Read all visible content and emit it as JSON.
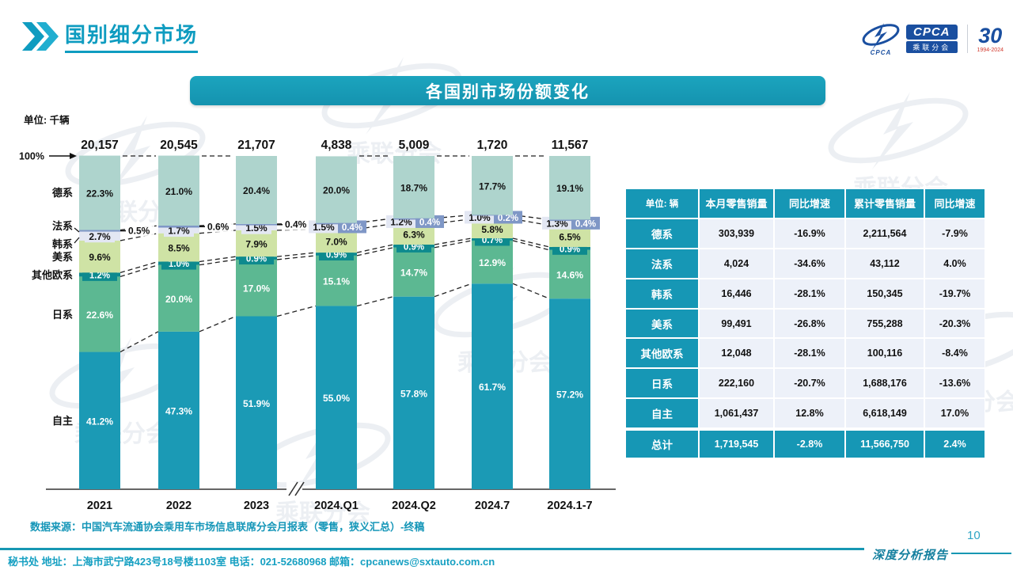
{
  "accent_color": "#1697b5",
  "header": {
    "title": "国别细分市场"
  },
  "logo": {
    "name": "CPCA",
    "subtitle": "乘联分会",
    "anniversary": "30",
    "years": "1994-2024"
  },
  "banner": {
    "title": "各国别市场份额变化"
  },
  "chart_data": {
    "type": "stacked-bar-100",
    "title": "各国别市场份额变化",
    "unit_label": "单位: 千辆",
    "axis_top_label": "100%",
    "categories": [
      "2021",
      "2022",
      "2023",
      "2024.Q1",
      "2024.Q2",
      "2024.7",
      "2024.1-7"
    ],
    "totals": [
      "20,157",
      "20,545",
      "21,707",
      "4,838",
      "5,009",
      "1,720",
      "11,567"
    ],
    "group_break_after": 2,
    "series": [
      {
        "name": "自主",
        "color": "#1b9ab5",
        "values": [
          41.2,
          47.3,
          51.9,
          55.0,
          57.8,
          61.7,
          57.2
        ]
      },
      {
        "name": "日系",
        "color": "#5cb892",
        "values": [
          22.6,
          20.0,
          17.0,
          15.1,
          14.7,
          12.9,
          14.6
        ]
      },
      {
        "name": "其他欧系",
        "color": "#0d8a8e",
        "values": [
          1.2,
          1.0,
          0.9,
          0.9,
          0.9,
          0.7,
          0.9
        ]
      },
      {
        "name": "美系",
        "color": "#cfe3a5",
        "values": [
          9.6,
          8.5,
          7.9,
          7.0,
          6.3,
          5.8,
          6.5
        ]
      },
      {
        "name": "韩系",
        "color": "#e3e7f3",
        "values": [
          2.7,
          1.7,
          1.5,
          1.5,
          1.2,
          1.0,
          1.3
        ]
      },
      {
        "name": "法系",
        "color": "#7f97c6",
        "values": [
          0.5,
          0.6,
          0.4,
          0.4,
          0.4,
          0.2,
          0.4
        ]
      },
      {
        "name": "德系",
        "color": "#aed4cd",
        "values": [
          22.3,
          21.0,
          20.4,
          20.0,
          18.7,
          17.7,
          19.1
        ]
      }
    ]
  },
  "table": {
    "header": [
      "单位: 辆",
      "本月零售销量",
      "同比增速",
      "累计零售销量",
      "同比增速"
    ],
    "rows": [
      [
        "德系",
        "303,939",
        "-16.9%",
        "2,211,564",
        "-7.9%"
      ],
      [
        "法系",
        "4,024",
        "-34.6%",
        "43,112",
        "4.0%"
      ],
      [
        "韩系",
        "16,446",
        "-28.1%",
        "150,345",
        "-19.7%"
      ],
      [
        "美系",
        "99,491",
        "-26.8%",
        "755,288",
        "-20.3%"
      ],
      [
        "其他欧系",
        "12,048",
        "-28.1%",
        "100,116",
        "-8.4%"
      ],
      [
        "日系",
        "222,160",
        "-20.7%",
        "1,688,176",
        "-13.6%"
      ],
      [
        "自主",
        "1,061,437",
        "12.8%",
        "6,618,149",
        "17.0%"
      ]
    ],
    "total_row": [
      "总计",
      "1,719,545",
      "-2.8%",
      "11,566,750",
      "2.4%"
    ]
  },
  "footer": {
    "source": "数据来源：中国汽车流通协会乘用车市场信息联席分会月报表（零售，狭义汇总）-终稿",
    "secretariat": "秘书处  地址：上海市武宁路423号18号楼1103室  电话：021-52680968   邮箱：cpcanews@sxtauto.com.cn",
    "page_number": "10",
    "report_label": "深度分析报告"
  },
  "watermark": {
    "text": "乘联分会"
  }
}
